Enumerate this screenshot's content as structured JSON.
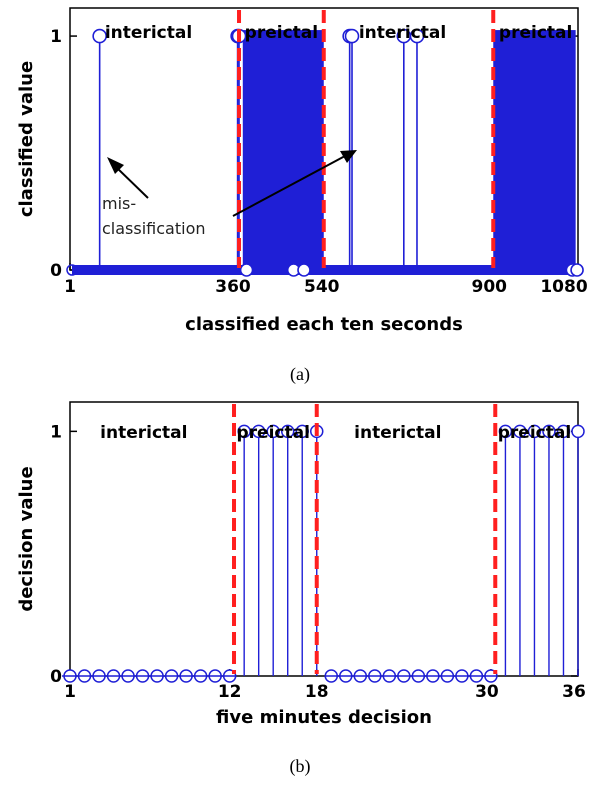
{
  "chart_data": [
    {
      "type": "stem",
      "panel_label": "(a)",
      "xlabel": "classified each ten seconds",
      "ylabel": "classified value",
      "xlim": [
        1,
        1080
      ],
      "ylim": [
        0,
        1.12
      ],
      "xticks": [
        1,
        360,
        540,
        900,
        1080
      ],
      "xtick_labels": [
        "1",
        "360",
        "540",
        "900",
        "1080"
      ],
      "yticks": [
        0,
        1
      ],
      "ytick_labels": [
        "0",
        "1"
      ],
      "boundaries": [
        360,
        540,
        900
      ],
      "regions": [
        {
          "label": "interictal",
          "from": 1,
          "to": 360
        },
        {
          "label": "preictal",
          "from": 360,
          "to": 540
        },
        {
          "label": "interictal",
          "from": 540,
          "to": 900
        },
        {
          "label": "preictal",
          "from": 900,
          "to": 1080
        }
      ],
      "ones_dense_ranges": [
        [
          368,
          540
        ],
        [
          900,
          1075
        ]
      ],
      "ones_isolated_x": [
        64,
        357,
        360,
        595,
        600,
        710,
        738
      ],
      "zeros_in_preictal_x": [
        376,
        476,
        498,
        1068,
        1078
      ],
      "annotation": {
        "line1": "mis-",
        "line2": "classification"
      }
    },
    {
      "type": "stem",
      "panel_label": "(b)",
      "xlabel": "five minutes decision",
      "ylabel": "decision value",
      "xlim": [
        1,
        36
      ],
      "ylim": [
        0,
        1.12
      ],
      "xticks": [
        1,
        12,
        18,
        30,
        36
      ],
      "xtick_labels": [
        "1",
        "12",
        "18",
        "30",
        "36"
      ],
      "yticks": [
        0,
        1
      ],
      "ytick_labels": [
        "0",
        "1"
      ],
      "boundaries": [
        12.3,
        18,
        30.3
      ],
      "regions": [
        {
          "label": "interictal",
          "from": 1,
          "to": 12
        },
        {
          "label": "preictal",
          "from": 12,
          "to": 18
        },
        {
          "label": "interictal",
          "from": 18,
          "to": 30
        },
        {
          "label": "preictal",
          "from": 30,
          "to": 36
        }
      ],
      "x": [
        1,
        2,
        3,
        4,
        5,
        6,
        7,
        8,
        9,
        10,
        11,
        12,
        13,
        14,
        15,
        16,
        17,
        18,
        19,
        20,
        21,
        22,
        23,
        24,
        25,
        26,
        27,
        28,
        29,
        30,
        31,
        32,
        33,
        34,
        35,
        36
      ],
      "y": [
        0,
        0,
        0,
        0,
        0,
        0,
        0,
        0,
        0,
        0,
        0,
        0,
        1,
        1,
        1,
        1,
        1,
        1,
        0,
        0,
        0,
        0,
        0,
        0,
        0,
        0,
        0,
        0,
        0,
        0,
        1,
        1,
        1,
        1,
        1,
        1
      ]
    }
  ]
}
